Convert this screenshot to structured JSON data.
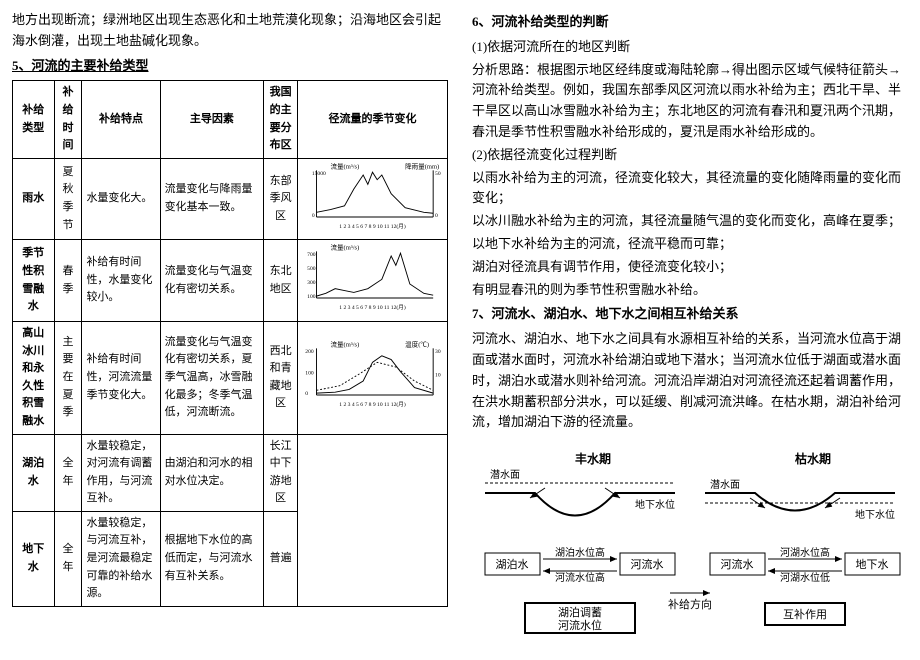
{
  "intro": "地方出现断流；绿洲地区出现生态恶化和土地荒漠化现象；沿海地区会引起海水倒灌，出现土地盐碱化现象。",
  "sec5_title": "5、河流的主要补给类型",
  "table": {
    "headers": [
      "补给类型",
      "补给时间",
      "补给特点",
      "主导因素",
      "我国的主要分布区",
      "径流量的季节变化"
    ],
    "rows": [
      {
        "type": "雨水",
        "time": "夏秋季节",
        "feature": "水量变化大。",
        "factor": "流量变化与降雨量变化基本一致。",
        "area": "东部季风区"
      },
      {
        "type": "季节性积雪融水",
        "time": "春季",
        "feature": "补给有时间性，水量变化较小。",
        "factor": "流量变化与气温变化有密切关系。",
        "area": "东北地区"
      },
      {
        "type": "高山冰川和永久性积雪融水",
        "time": "主要在夏季",
        "feature": "补给有时间性，河流流量季节变化大。",
        "factor": "流量变化与气温变化有密切关系，夏季气温高，冰雪融化最多；冬季气温低，河流断流。",
        "area": "西北和青藏地区"
      },
      {
        "type": "湖泊水",
        "time": "全年",
        "feature": "水量较稳定，对河流有调蓄作用，与河流互补。",
        "factor": "由湖泊和河水的相对水位决定。",
        "area": "长江中下游地区"
      },
      {
        "type": "地下水",
        "time": "全年",
        "feature": "水量较稳定，与河流互补，是河流最稳定可靠的补给水源。",
        "factor": "根据地下水位的高低而定，与河流水有互补关系。",
        "area": "普遍"
      }
    ]
  },
  "sec6_title": "6、河流补给类型的判断",
  "sec6_sub1": "(1)依据河流所在的地区判断",
  "sec6_p1": "分析思路：根据图示地区经纬度或海陆轮廓→得出图示区域气候特征箭头→河流补给类型。例如，我国东部季风区河流以雨水补给为主；西北干旱、半干旱区以高山冰雪融水补给为主；东北地区的河流有春汛和夏汛两个汛期，春汛是季节性积雪融水补给形成的，夏汛是雨水补给形成的。",
  "sec6_sub2": "(2)依据径流变化过程判断",
  "sec6_p2": "以雨水补给为主的河流，径流变化较大，其径流量的变化随降雨量的变化而变化；",
  "sec6_p3": "以冰川融水补给为主的河流，其径流量随气温的变化而变化，高峰在夏季；",
  "sec6_p4": "以地下水补给为主的河流，径流平稳而可靠；",
  "sec6_p5": "湖泊对径流具有调节作用，使径流变化较小；",
  "sec6_p6": "有明显春汛的则为季节性积雪融水补给。",
  "sec7_title": "7、河流水、湖泊水、地下水之间相互补给关系",
  "sec7_p1": "河流水、湖泊水、地下水之间具有水源相互补给的关系，当河流水位高于湖面或潜水面时，河流水补给湖泊或地下潜水；当河流水位低于湖面或潜水面时，湖泊水或潜水则补给河流。河流沿岸湖泊对河流径流还起着调蓄作用，在洪水期蓄积部分洪水，可以延缓、削减河流洪峰。在枯水期，湖泊补给河流，增加湖泊下游的径流量。",
  "diag_labels": {
    "feng": "丰水期",
    "ku": "枯水期",
    "qianshui": "潜水面",
    "dixia": "地下水位",
    "hupo": "湖泊水",
    "heliu": "河流水",
    "hupo_gao": "湖泊水位高",
    "heliu_gao": "河流水位高",
    "hehu_gao": "河湖水位高",
    "hehu_di": "河湖水位低",
    "tiaoxu": "湖泊调蓄河流水位",
    "hubu": "互补作用",
    "fangxiang": "补给方向",
    "dixiashui": "地下水"
  },
  "chart_labels": {
    "liuliang_m3s": "流量(m³/s)",
    "yuliang_mm": "降雨量(mm)",
    "wendu": "温度(℃)",
    "months": "1 2 3 4 5 6 7 8 9 10 11 12(月)"
  }
}
